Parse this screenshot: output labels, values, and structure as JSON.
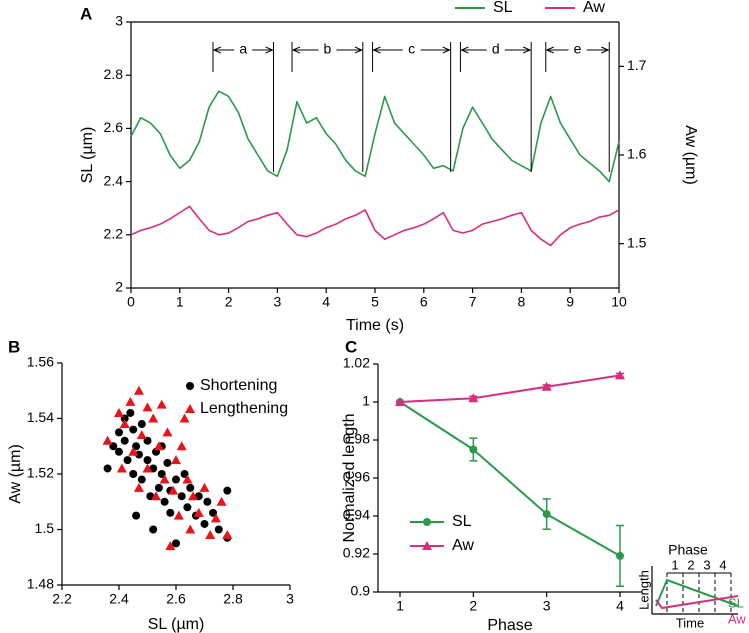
{
  "chart_data": [
    {
      "type": "line",
      "panel": "A",
      "xlabel": "Time (s)",
      "ylabel": "SL (µm)",
      "y2label": "Aw (µm)",
      "xlim": [
        0,
        10
      ],
      "xticks": [
        0,
        1,
        2,
        3,
        4,
        5,
        6,
        7,
        8,
        9,
        10
      ],
      "ylim": [
        2,
        3
      ],
      "yticks": [
        2,
        2.2,
        2.4,
        2.6,
        2.8,
        3
      ],
      "y2lim": [
        1.45,
        1.75
      ],
      "y2ticks": [
        1.5,
        1.6,
        1.7
      ],
      "x": [
        0,
        0.2,
        0.4,
        0.6,
        0.8,
        1,
        1.2,
        1.4,
        1.6,
        1.8,
        2,
        2.2,
        2.4,
        2.6,
        2.8,
        3,
        3.2,
        3.4,
        3.6,
        3.8,
        4,
        4.2,
        4.4,
        4.6,
        4.8,
        5,
        5.2,
        5.4,
        5.6,
        5.8,
        6,
        6.2,
        6.4,
        6.6,
        6.8,
        7,
        7.2,
        7.4,
        7.6,
        7.8,
        8,
        8.2,
        8.4,
        8.6,
        8.8,
        9,
        9.2,
        9.4,
        9.6,
        9.8,
        10
      ],
      "series": [
        {
          "name": "SL",
          "color": "#2a9a4a",
          "values": [
            2.57,
            2.64,
            2.62,
            2.58,
            2.5,
            2.45,
            2.48,
            2.55,
            2.68,
            2.74,
            2.72,
            2.66,
            2.56,
            2.5,
            2.44,
            2.42,
            2.52,
            2.7,
            2.62,
            2.64,
            2.58,
            2.54,
            2.48,
            2.44,
            2.42,
            2.58,
            2.72,
            2.62,
            2.58,
            2.54,
            2.5,
            2.45,
            2.46,
            2.44,
            2.6,
            2.68,
            2.62,
            2.56,
            2.52,
            2.48,
            2.46,
            2.44,
            2.62,
            2.72,
            2.62,
            2.56,
            2.5,
            2.47,
            2.44,
            2.4,
            2.55
          ]
        },
        {
          "name": "Aw",
          "color": "#d62f7f",
          "axis": "y2",
          "values": [
            1.51,
            1.515,
            1.518,
            1.522,
            1.528,
            1.535,
            1.542,
            1.528,
            1.515,
            1.51,
            1.512,
            1.518,
            1.525,
            1.528,
            1.532,
            1.535,
            1.522,
            1.51,
            1.508,
            1.512,
            1.518,
            1.522,
            1.528,
            1.532,
            1.538,
            1.515,
            1.505,
            1.51,
            1.515,
            1.518,
            1.522,
            1.528,
            1.535,
            1.515,
            1.512,
            1.515,
            1.522,
            1.525,
            1.528,
            1.532,
            1.535,
            1.515,
            1.505,
            1.498,
            1.51,
            1.518,
            1.522,
            1.525,
            1.53,
            1.532,
            1.538
          ]
        }
      ],
      "intervals": [
        {
          "label": "a",
          "start": 1.68,
          "end": 2.92
        },
        {
          "label": "b",
          "start": 3.3,
          "end": 4.75
        },
        {
          "label": "c",
          "start": 4.95,
          "end": 6.55
        },
        {
          "label": "d",
          "start": 6.75,
          "end": 8.2
        },
        {
          "label": "e",
          "start": 8.5,
          "end": 9.8
        }
      ]
    },
    {
      "type": "scatter",
      "panel": "B",
      "xlabel": "SL (µm)",
      "ylabel": "Aw (µm)",
      "xlim": [
        2.2,
        3
      ],
      "xticks": [
        2.2,
        2.4,
        2.6,
        2.8,
        3
      ],
      "ylim": [
        1.48,
        1.56
      ],
      "yticks": [
        1.48,
        1.5,
        1.52,
        1.54,
        1.56
      ],
      "series": [
        {
          "name": "Shortening",
          "color": "#000000",
          "marker": "circle",
          "x": [
            2.36,
            2.38,
            2.4,
            2.4,
            2.42,
            2.42,
            2.43,
            2.44,
            2.45,
            2.45,
            2.46,
            2.47,
            2.48,
            2.48,
            2.5,
            2.5,
            2.51,
            2.52,
            2.53,
            2.54,
            2.55,
            2.56,
            2.57,
            2.58,
            2.58,
            2.6,
            2.6,
            2.62,
            2.63,
            2.64,
            2.65,
            2.67,
            2.68,
            2.7,
            2.71,
            2.73,
            2.75,
            2.78,
            2.78,
            2.52,
            2.46,
            2.55
          ],
          "values": [
            1.522,
            1.53,
            1.535,
            1.528,
            1.54,
            1.532,
            1.525,
            1.542,
            1.536,
            1.52,
            1.53,
            1.527,
            1.538,
            1.518,
            1.525,
            1.532,
            1.512,
            1.522,
            1.528,
            1.515,
            1.52,
            1.51,
            1.524,
            1.514,
            1.506,
            1.518,
            1.495,
            1.512,
            1.52,
            1.508,
            1.515,
            1.505,
            1.512,
            1.502,
            1.51,
            1.506,
            1.5,
            1.514,
            1.497,
            1.5,
            1.505,
            1.53
          ]
        },
        {
          "name": "Lengthening",
          "color": "#e8141b",
          "marker": "triangle",
          "x": [
            2.36,
            2.4,
            2.42,
            2.44,
            2.45,
            2.47,
            2.48,
            2.5,
            2.5,
            2.52,
            2.53,
            2.54,
            2.55,
            2.56,
            2.57,
            2.59,
            2.6,
            2.61,
            2.62,
            2.64,
            2.65,
            2.66,
            2.68,
            2.7,
            2.72,
            2.74,
            2.76,
            2.78,
            2.58,
            2.47,
            2.41,
            2.63
          ],
          "values": [
            1.532,
            1.542,
            1.538,
            1.546,
            1.528,
            1.55,
            1.534,
            1.544,
            1.522,
            1.54,
            1.512,
            1.53,
            1.545,
            1.518,
            1.535,
            1.514,
            1.525,
            1.505,
            1.53,
            1.518,
            1.5,
            1.512,
            1.506,
            1.515,
            1.498,
            1.504,
            1.51,
            1.498,
            1.494,
            1.515,
            1.522,
            1.54
          ]
        }
      ]
    },
    {
      "type": "line",
      "panel": "C",
      "xlabel": "Phase",
      "ylabel": "Normalized length",
      "xlim": [
        0.7,
        4.3
      ],
      "xticks": [
        1,
        2,
        3,
        4
      ],
      "ylim": [
        0.9,
        1.02
      ],
      "yticks": [
        0.9,
        0.92,
        0.94,
        0.96,
        0.98,
        1,
        1.02
      ],
      "x": [
        1,
        2,
        3,
        4
      ],
      "series": [
        {
          "name": "SL",
          "color": "#2a9a4a",
          "marker": "circle",
          "values": [
            1,
            0.975,
            0.941,
            0.919
          ],
          "errors": [
            0,
            0.006,
            0.008,
            0.016
          ]
        },
        {
          "name": "Aw",
          "color": "#d62f7f",
          "marker": "triangle",
          "values": [
            1,
            1.002,
            1.008,
            1.014
          ],
          "errors": [
            0,
            0.001,
            0.001,
            0.001
          ]
        }
      ]
    }
  ],
  "inset": {
    "title": "Phase",
    "phases": [
      "1",
      "2",
      "3",
      "4"
    ],
    "ylabel": "Length",
    "xlabel": "Time",
    "lines": [
      "SL",
      "Aw"
    ]
  }
}
